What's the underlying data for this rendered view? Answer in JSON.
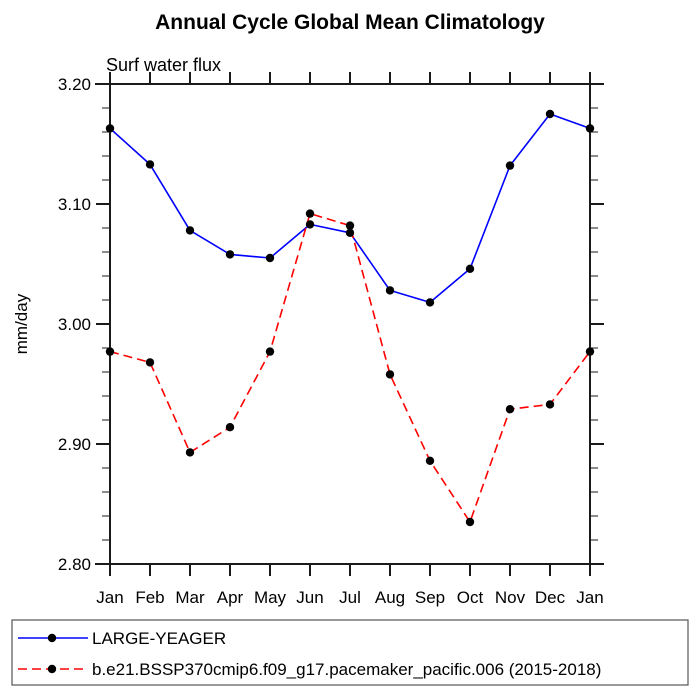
{
  "page": {
    "background": "#ffffff"
  },
  "chart_data": {
    "type": "line",
    "title": "Annual Cycle Global Mean Climatology",
    "subtitle": "Surf water flux",
    "ylabel": "mm/day",
    "categories": [
      "Jan",
      "Feb",
      "Mar",
      "Apr",
      "May",
      "Jun",
      "Jul",
      "Aug",
      "Sep",
      "Oct",
      "Nov",
      "Dec",
      "Jan"
    ],
    "ylim": [
      2.8,
      3.2
    ],
    "yticks": [
      2.8,
      2.9,
      3.0,
      3.1,
      3.2
    ],
    "ytick_labels": [
      "2.80",
      "2.90",
      "3.00",
      "3.10",
      "3.20"
    ],
    "yminor_step": 0.02,
    "grid": false,
    "axis_color": "#1a1a1a",
    "marker_color": "#000000",
    "legend_position": "bottom-left",
    "series": [
      {
        "name": "LARGE-YEAGER",
        "color": "#0000ff",
        "line_style": "solid",
        "marker": "circle",
        "values": [
          3.163,
          3.133,
          3.078,
          3.058,
          3.055,
          3.083,
          3.076,
          3.028,
          3.018,
          3.046,
          3.132,
          3.175,
          3.163
        ]
      },
      {
        "name": "b.e21.BSSP370cmip6.f09_g17.pacemaker_pacific.006 (2015-2018)",
        "color": "#ff0000",
        "line_style": "dashed",
        "marker": "circle",
        "values": [
          2.977,
          2.968,
          2.893,
          2.914,
          2.977,
          3.092,
          3.082,
          2.958,
          2.886,
          2.835,
          2.929,
          2.933,
          2.977
        ]
      }
    ]
  }
}
